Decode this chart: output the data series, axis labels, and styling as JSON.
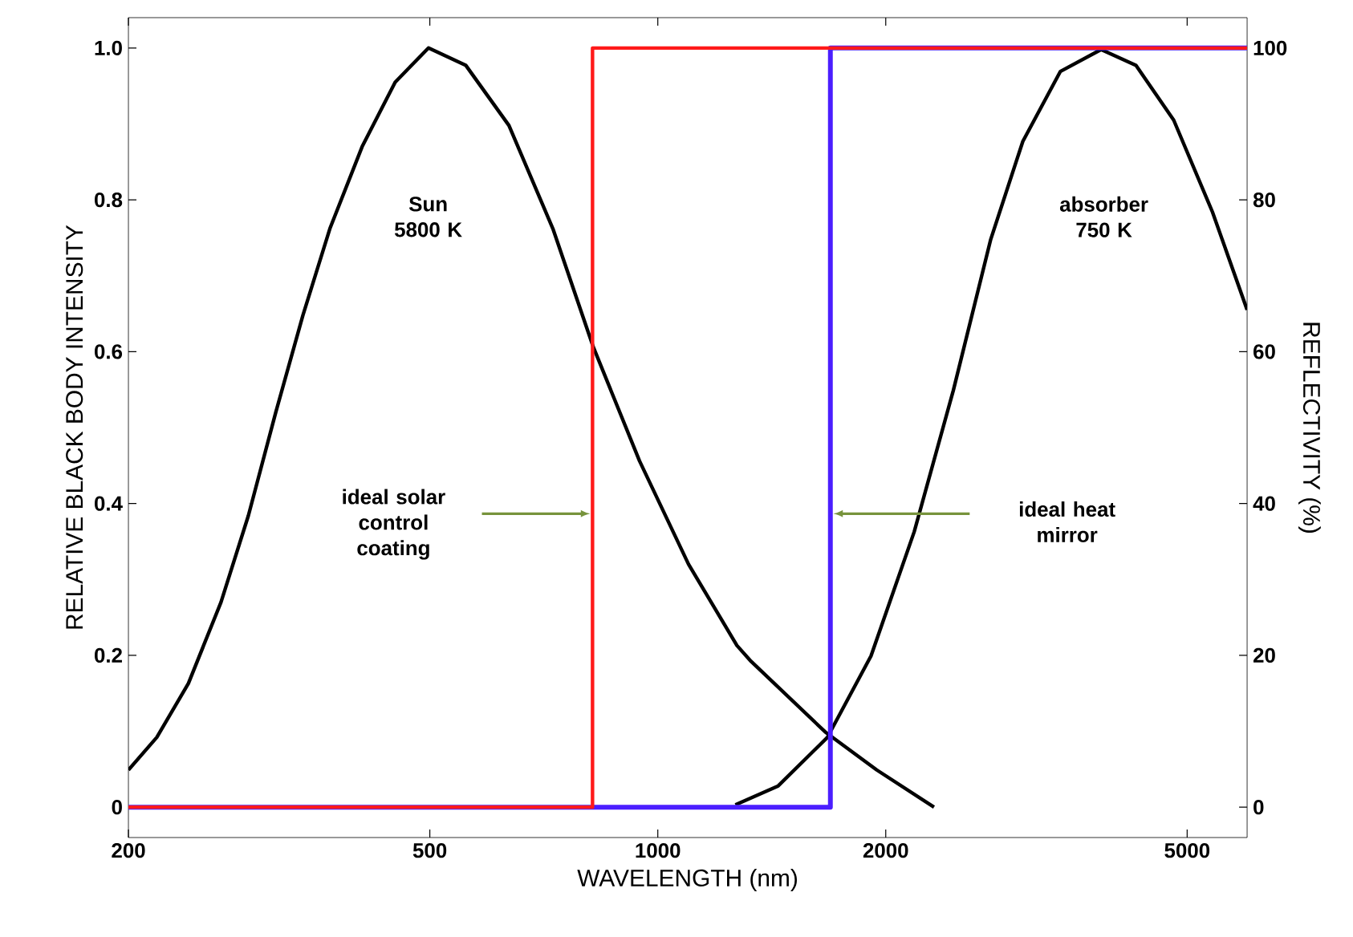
{
  "chart_data": {
    "type": "line",
    "xlabel": "WAVELENGTH (nm)",
    "ylabel": "RELATIVE BLACK BODY INTENSITY",
    "y2label": "REFLECTIVITY (%)",
    "log": "x",
    "grid": false,
    "marker": "none",
    "line_style": "solid",
    "xlim": [
      200,
      6000
    ],
    "xticks": [
      200,
      500,
      1000,
      2000,
      5000
    ],
    "ylim": [
      -0.04,
      1.04
    ],
    "yticks": [
      0,
      0.2,
      0.4,
      0.6,
      0.8,
      {
        "value": 1,
        "label": "1.0"
      }
    ],
    "y2lim": [
      -4,
      104
    ],
    "y2ticks": [
      0,
      20,
      40,
      60,
      80,
      100
    ],
    "series": [
      {
        "color": "#000000",
        "x": [
          200,
          218,
          240,
          265,
          288,
          313,
          340,
          369,
          407,
          450,
          498,
          558,
          636,
          727,
          822,
          946,
          1098,
          1272,
          1328,
          1664,
          1946,
          2316
        ],
        "values": [
          0.049,
          0.092,
          0.163,
          0.27,
          0.384,
          0.52,
          0.648,
          0.762,
          0.87,
          0.955,
          1.0,
          0.977,
          0.898,
          0.762,
          0.606,
          0.456,
          0.32,
          0.213,
          0.192,
          0.099,
          0.049,
          0.0
        ]
      },
      {
        "color": "#000000",
        "x": [
          1266,
          1442,
          1675,
          1912,
          2181,
          2456,
          2752,
          3034,
          3400,
          3850,
          4280,
          4800,
          5400,
          6000
        ],
        "values": [
          0.003,
          0.028,
          0.092,
          0.199,
          0.363,
          0.549,
          0.748,
          0.877,
          0.969,
          0.998,
          0.977,
          0.905,
          0.784,
          0.655
        ]
      },
      {
        "color": "#4b1eff",
        "axis": "y2",
        "x": [
          200,
          1690,
          1690,
          6000
        ],
        "values": [
          0,
          0,
          100,
          100
        ]
      },
      {
        "color": "#ff1a1a",
        "axis": "y2",
        "x": [
          200,
          820,
          820,
          6000
        ],
        "values": [
          0,
          0,
          100,
          100
        ]
      }
    ],
    "annotations": [
      "Sun 5800 K",
      "absorber 750 K",
      "ideal solar control coating",
      "ideal heat mirror"
    ]
  }
}
